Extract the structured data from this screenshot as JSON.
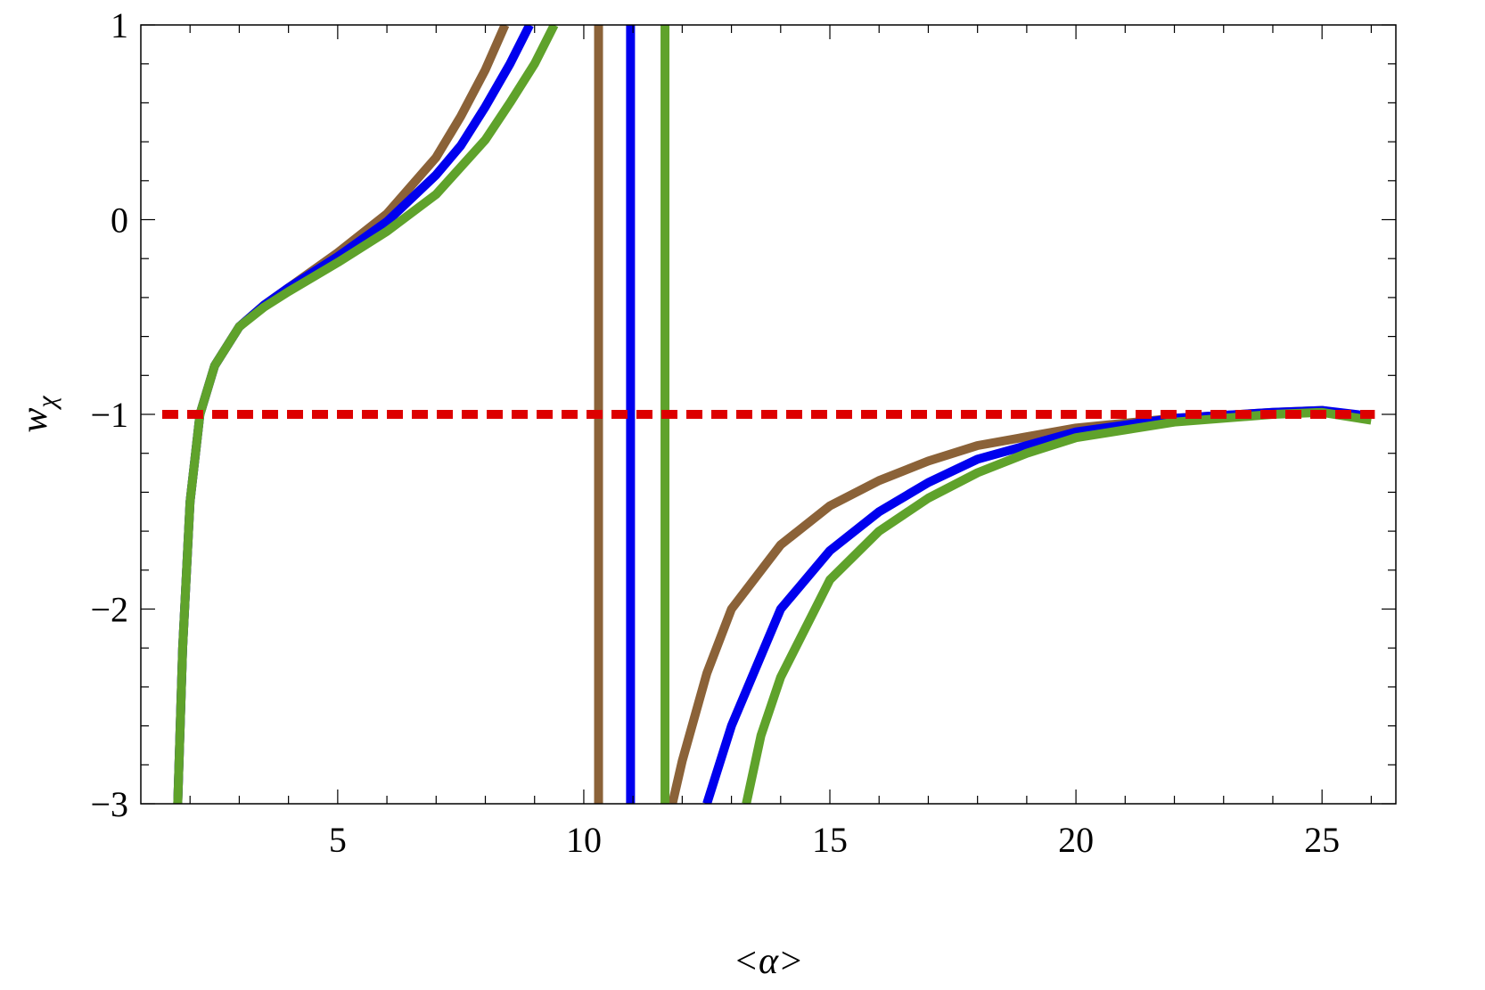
{
  "chart_data": {
    "type": "line",
    "title": "",
    "xlabel": "<α>",
    "ylabel_main": "w",
    "ylabel_sub": "χ",
    "xlim": [
      1,
      26.5
    ],
    "ylim": [
      -3,
      1
    ],
    "x_ticks": [
      5,
      10,
      15,
      20,
      25
    ],
    "x_tick_labels": [
      "5",
      "10",
      "15",
      "20",
      "25"
    ],
    "y_ticks": [
      1,
      0,
      -1,
      -2,
      -3
    ],
    "y_tick_labels": [
      "1",
      "0",
      "−1",
      "−2",
      "−3"
    ],
    "grid": false,
    "reference_line": {
      "y": -1,
      "color": "#dd0000",
      "style": "dashed"
    },
    "series": [
      {
        "color": "#8b6238",
        "pole_x": 10.3,
        "branches": [
          {
            "x": [
              1.75,
              1.85,
              2.0,
              2.2,
              2.5,
              3.0,
              3.5,
              4.0,
              5.0,
              6.0,
              7.0,
              7.5,
              8.0,
              8.4
            ],
            "y": [
              -3.0,
              -2.2,
              -1.45,
              -1.0,
              -0.75,
              -0.55,
              -0.44,
              -0.35,
              -0.17,
              0.03,
              0.32,
              0.53,
              0.77,
              1.0
            ]
          },
          {
            "x": [
              11.8,
              12.0,
              12.5,
              13.0,
              14.0,
              15.0,
              16.0,
              17.0,
              18.0,
              20.0,
              22.0,
              24.0,
              25.0,
              26.0
            ],
            "y": [
              -3.0,
              -2.78,
              -2.33,
              -2.0,
              -1.67,
              -1.47,
              -1.34,
              -1.24,
              -1.16,
              -1.07,
              -1.02,
              -0.99,
              -0.98,
              -1.02
            ]
          }
        ]
      },
      {
        "color": "#0000ee",
        "pole_x": 10.95,
        "branches": [
          {
            "x": [
              1.75,
              1.85,
              2.0,
              2.2,
              2.5,
              3.0,
              3.5,
              4.0,
              5.0,
              6.0,
              7.0,
              7.5,
              8.0,
              8.5,
              8.9
            ],
            "y": [
              -3.0,
              -2.2,
              -1.45,
              -1.0,
              -0.75,
              -0.55,
              -0.44,
              -0.35,
              -0.19,
              -0.01,
              0.23,
              0.38,
              0.58,
              0.8,
              1.0
            ]
          },
          {
            "x": [
              12.5,
              13.0,
              14.0,
              15.0,
              16.0,
              17.0,
              18.0,
              20.0,
              22.0,
              24.0,
              25.0,
              26.0
            ],
            "y": [
              -3.0,
              -2.6,
              -2.0,
              -1.7,
              -1.5,
              -1.35,
              -1.23,
              -1.09,
              -1.02,
              -0.99,
              -0.98,
              -1.01
            ]
          }
        ]
      },
      {
        "color": "#5fa22b",
        "pole_x": 11.65,
        "branches": [
          {
            "x": [
              1.75,
              1.85,
              2.0,
              2.2,
              2.5,
              3.0,
              3.5,
              4.0,
              5.0,
              6.0,
              7.0,
              8.0,
              8.5,
              9.0,
              9.4
            ],
            "y": [
              -3.0,
              -2.2,
              -1.45,
              -1.0,
              -0.75,
              -0.55,
              -0.45,
              -0.37,
              -0.22,
              -0.06,
              0.13,
              0.41,
              0.6,
              0.8,
              1.0
            ]
          },
          {
            "x": [
              13.3,
              13.6,
              14.0,
              15.0,
              16.0,
              17.0,
              18.0,
              19.0,
              20.0,
              22.0,
              24.0,
              25.0,
              26.0
            ],
            "y": [
              -3.0,
              -2.65,
              -2.35,
              -1.85,
              -1.6,
              -1.43,
              -1.3,
              -1.2,
              -1.12,
              -1.04,
              -1.0,
              -0.99,
              -1.03
            ]
          }
        ]
      }
    ]
  }
}
